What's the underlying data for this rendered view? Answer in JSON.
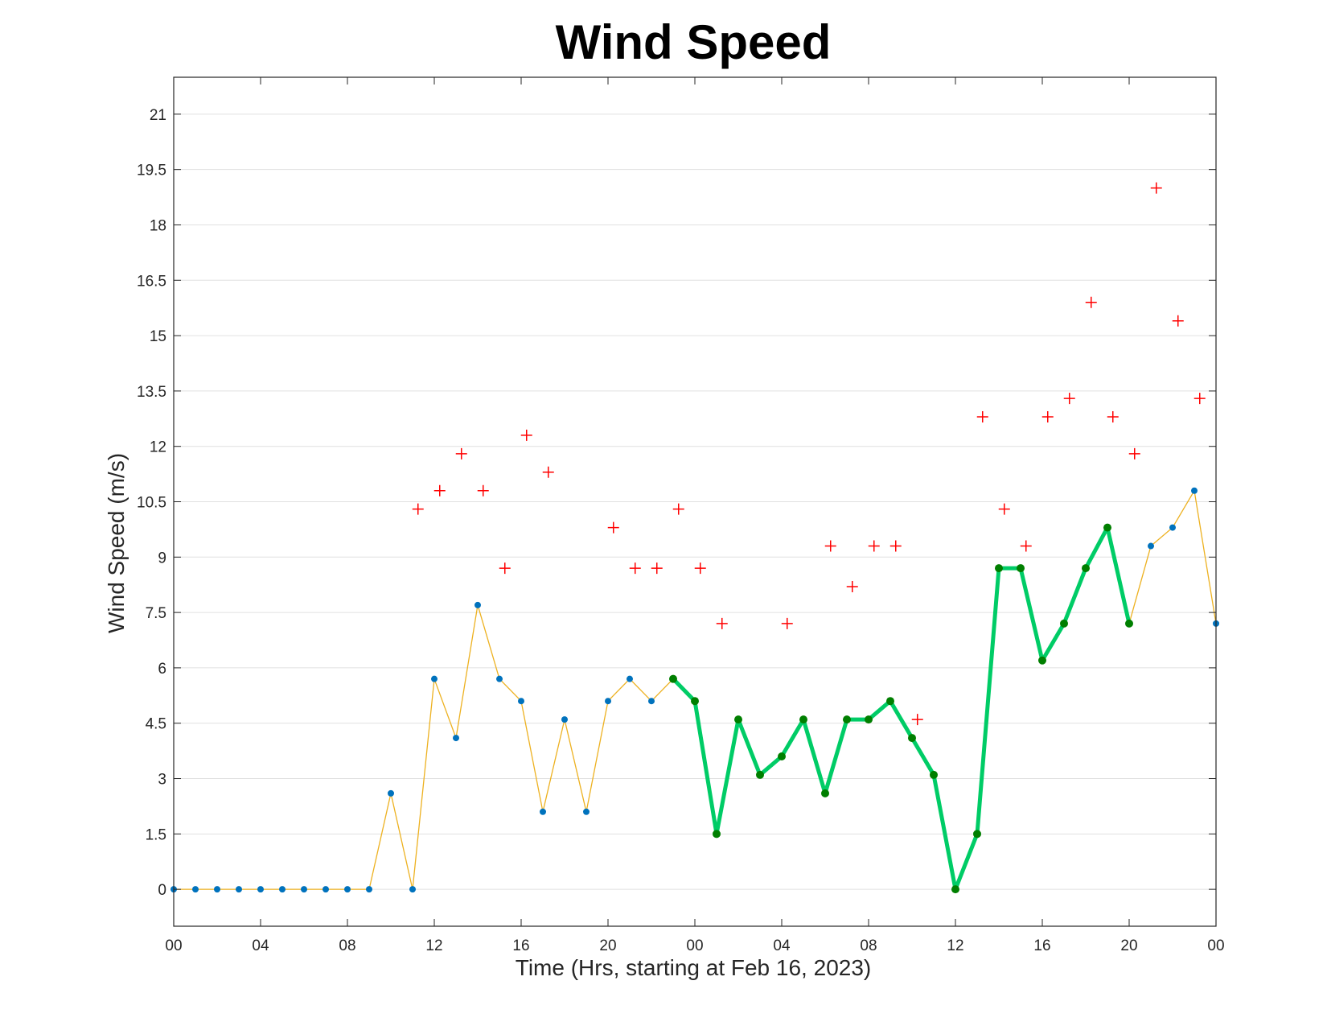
{
  "chart_data": {
    "type": "line",
    "title": "Wind Speed",
    "xlabel": "Time (Hrs, starting at Feb 16, 2023)",
    "ylabel": "Wind Speed (m/s)",
    "xlim": [
      0,
      48
    ],
    "ylim": [
      -1,
      22
    ],
    "x_ticks": [
      0,
      4,
      8,
      12,
      16,
      20,
      24,
      28,
      32,
      36,
      40,
      44,
      48
    ],
    "x_tick_labels": [
      "00",
      "04",
      "08",
      "12",
      "16",
      "20",
      "00",
      "04",
      "08",
      "12",
      "16",
      "20",
      "00"
    ],
    "y_ticks": [
      0,
      1.5,
      3,
      4.5,
      6,
      7.5,
      9,
      10.5,
      12,
      13.5,
      15,
      16.5,
      18,
      19.5,
      21
    ],
    "y_tick_labels": [
      "0",
      "1.5",
      "3",
      "4.5",
      "6",
      "7.5",
      "9",
      "10.5",
      "12",
      "13.5",
      "15",
      "16.5",
      "18",
      "19.5",
      "21"
    ],
    "grid": "horizontal",
    "colors": {
      "wind_line": "#EDB120",
      "wind_marker": "#0072BD",
      "highlight_line": "#00CC66",
      "highlight_marker": "#007F00",
      "gust_marker": "#FF0000",
      "grid": "#E0E0E0",
      "axes": "#262626"
    },
    "series": [
      {
        "style": "orange line with blue dot markers",
        "x": [
          0,
          1,
          2,
          3,
          4,
          5,
          6,
          7,
          8,
          9,
          10,
          11,
          12,
          13,
          14,
          15,
          16,
          17,
          18,
          19,
          20,
          21,
          22,
          23,
          24,
          25,
          26,
          27,
          28,
          29,
          30,
          31,
          32,
          33,
          34,
          35,
          36,
          37,
          38,
          39,
          40,
          41,
          42,
          43,
          44,
          45,
          46,
          47,
          48
        ],
        "y": [
          0,
          0,
          0,
          0,
          0,
          0,
          0,
          0,
          0,
          0,
          2.6,
          0,
          5.7,
          4.1,
          7.7,
          5.7,
          5.1,
          2.1,
          4.6,
          2.1,
          5.1,
          5.7,
          5.1,
          5.7,
          5.1,
          1.5,
          4.6,
          3.1,
          3.6,
          4.6,
          2.6,
          4.6,
          4.6,
          5.1,
          4.1,
          3.1,
          0,
          1.5,
          8.7,
          8.7,
          6.2,
          7.2,
          8.7,
          9.8,
          7.2,
          9.3,
          9.8,
          10.8,
          7.2
        ]
      },
      {
        "style": "thick green line with dark green dot markers",
        "x": [
          23,
          24,
          25,
          26,
          27,
          28,
          29,
          30,
          31,
          32,
          33,
          34,
          35,
          36,
          37,
          38,
          39,
          40,
          41,
          42,
          43,
          44
        ],
        "y": [
          5.7,
          5.1,
          1.5,
          4.6,
          3.1,
          3.6,
          4.6,
          2.6,
          4.6,
          4.6,
          5.1,
          4.1,
          3.1,
          0,
          1.5,
          8.7,
          8.7,
          6.2,
          7.2,
          8.7,
          9.8,
          7.2
        ]
      },
      {
        "style": "red plus markers",
        "x": [
          11.25,
          12.25,
          13.25,
          14.25,
          15.25,
          16.25,
          17.25,
          20.25,
          21.25,
          22.25,
          23.25,
          24.25,
          25.25,
          28.25,
          30.25,
          31.25,
          32.25,
          33.25,
          34.25,
          37.25,
          38.25,
          39.25,
          40.25,
          41.25,
          42.25,
          43.25,
          44.25,
          45.25,
          46.25,
          47.25
        ],
        "y": [
          10.3,
          10.8,
          11.8,
          10.8,
          8.7,
          12.3,
          11.3,
          9.8,
          8.7,
          8.7,
          10.3,
          8.7,
          7.2,
          7.2,
          9.3,
          8.2,
          9.3,
          9.3,
          4.6,
          12.8,
          10.3,
          9.3,
          12.8,
          13.3,
          15.9,
          12.8,
          11.8,
          19.0,
          15.4,
          13.3
        ]
      }
    ]
  }
}
